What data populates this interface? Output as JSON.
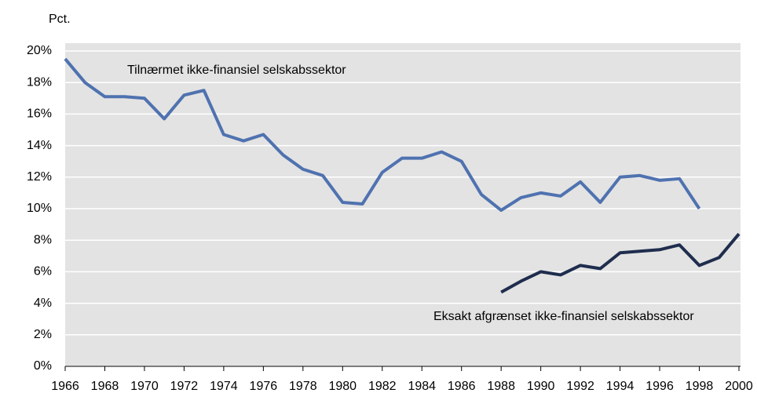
{
  "chart_data": {
    "type": "line",
    "y_label": "Pct.",
    "x": [
      1966,
      1967,
      1968,
      1969,
      1970,
      1971,
      1972,
      1973,
      1974,
      1975,
      1976,
      1977,
      1978,
      1979,
      1980,
      1981,
      1982,
      1983,
      1984,
      1985,
      1986,
      1987,
      1988,
      1989,
      1990,
      1991,
      1992,
      1993,
      1994,
      1995,
      1996,
      1997,
      1998,
      1999,
      2000
    ],
    "series": [
      {
        "name": "Tilnærmet ikke-finansiel selskabssektor",
        "color": "#4f72b0",
        "values": [
          19.5,
          18.0,
          17.1,
          17.1,
          17.0,
          15.7,
          17.2,
          17.5,
          14.7,
          14.3,
          14.7,
          13.4,
          12.5,
          12.1,
          10.4,
          10.3,
          12.3,
          13.2,
          13.2,
          13.6,
          13.0,
          10.9,
          9.9,
          10.7,
          11.0,
          10.8,
          11.7,
          10.4,
          12.0,
          12.1,
          11.8,
          11.9,
          10.0,
          null,
          null
        ]
      },
      {
        "name": "Eksakt afgrænset ikke-finansiel selskabssektor",
        "color": "#1f2d4e",
        "values": [
          null,
          null,
          null,
          null,
          null,
          null,
          null,
          null,
          null,
          null,
          null,
          null,
          null,
          null,
          null,
          null,
          null,
          null,
          null,
          null,
          null,
          null,
          4.7,
          5.4,
          6.0,
          5.8,
          6.4,
          6.2,
          7.2,
          7.3,
          7.4,
          7.7,
          6.4,
          6.9,
          8.4
        ]
      }
    ],
    "xlim": [
      1966,
      2000
    ],
    "xticks": [
      1966,
      1968,
      1970,
      1972,
      1974,
      1976,
      1978,
      1980,
      1982,
      1984,
      1986,
      1988,
      1990,
      1992,
      1994,
      1996,
      1998,
      2000
    ],
    "ylim": [
      0,
      20
    ],
    "yticks": [
      {
        "value": 0,
        "label": "0%"
      },
      {
        "value": 2,
        "label": "2%"
      },
      {
        "value": 4,
        "label": "4%"
      },
      {
        "value": 6,
        "label": "6%"
      },
      {
        "value": 8,
        "label": "8%"
      },
      {
        "value": 10,
        "label": "10%"
      },
      {
        "value": 12,
        "label": "12%"
      },
      {
        "value": 14,
        "label": "14%"
      },
      {
        "value": 16,
        "label": "16%"
      },
      {
        "value": 18,
        "label": "18%"
      },
      {
        "value": 20,
        "label": "20%"
      }
    ],
    "grid": true
  }
}
